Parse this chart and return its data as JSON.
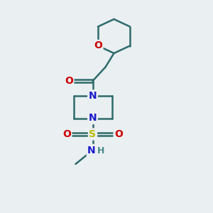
{
  "bg_color": "#eaeff1",
  "bond_color": "#2d6b6b",
  "n_color": "#1a1acc",
  "o_color": "#cc0000",
  "s_color": "#bbbb00",
  "h_color": "#4a8888",
  "line_width": 1.8,
  "font_size_atom": 10,
  "fig_width": 3.0,
  "fig_height": 3.0,
  "xlim": [
    0,
    10
  ],
  "ylim": [
    0,
    10
  ],
  "ring_oxane": [
    [
      4.6,
      8.75
    ],
    [
      5.35,
      9.1
    ],
    [
      6.1,
      8.75
    ],
    [
      6.1,
      7.85
    ],
    [
      5.35,
      7.5
    ],
    [
      4.6,
      7.85
    ]
  ],
  "o_ring_idx": 5,
  "c2_idx": 4,
  "ch2": [
    4.95,
    6.85
  ],
  "carb": [
    4.35,
    6.2
  ],
  "carb_o": [
    3.45,
    6.2
  ],
  "n1": [
    4.35,
    5.5
  ],
  "pip_tr": [
    5.25,
    5.5
  ],
  "pip_br": [
    5.25,
    4.45
  ],
  "n4": [
    4.35,
    4.45
  ],
  "pip_bl": [
    3.45,
    4.45
  ],
  "pip_tl": [
    3.45,
    5.5
  ],
  "s": [
    4.35,
    3.7
  ],
  "so_l": [
    3.35,
    3.7
  ],
  "so_r": [
    5.35,
    3.7
  ],
  "nh": [
    4.35,
    2.95
  ],
  "me": [
    3.55,
    2.3
  ]
}
